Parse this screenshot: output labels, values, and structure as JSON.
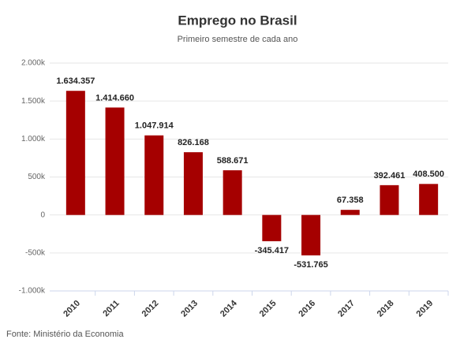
{
  "chart_data": {
    "type": "bar",
    "title": "Emprego no Brasil",
    "subtitle": "Primeiro semestre de cada ano",
    "source": "Fonte: Ministério da Economia",
    "categories": [
      "2010",
      "2011",
      "2012",
      "2013",
      "2014",
      "2015",
      "2016",
      "2017",
      "2018",
      "2019"
    ],
    "values": [
      1634357,
      1414660,
      1047914,
      826168,
      588671,
      -345417,
      -531765,
      67358,
      392461,
      408500
    ],
    "value_labels": [
      "1.634.357",
      "1.414.660",
      "1.047.914",
      "826.168",
      "588.671",
      "-345.417",
      "-531.765",
      "67.358",
      "392.461",
      "408.500"
    ],
    "color": "#a50000",
    "ylim": [
      -1000000,
      2000000
    ],
    "yticks": [
      {
        "value": -1000000,
        "label": "-1.000k"
      },
      {
        "value": -500000,
        "label": "-500k"
      },
      0,
      {
        "value": 500000,
        "label": "500k"
      },
      {
        "value": 1000000,
        "label": "1.000k"
      },
      {
        "value": 1500000,
        "label": "1.500k"
      },
      {
        "value": 2000000,
        "label": "2.000k"
      }
    ],
    "grid": true
  }
}
